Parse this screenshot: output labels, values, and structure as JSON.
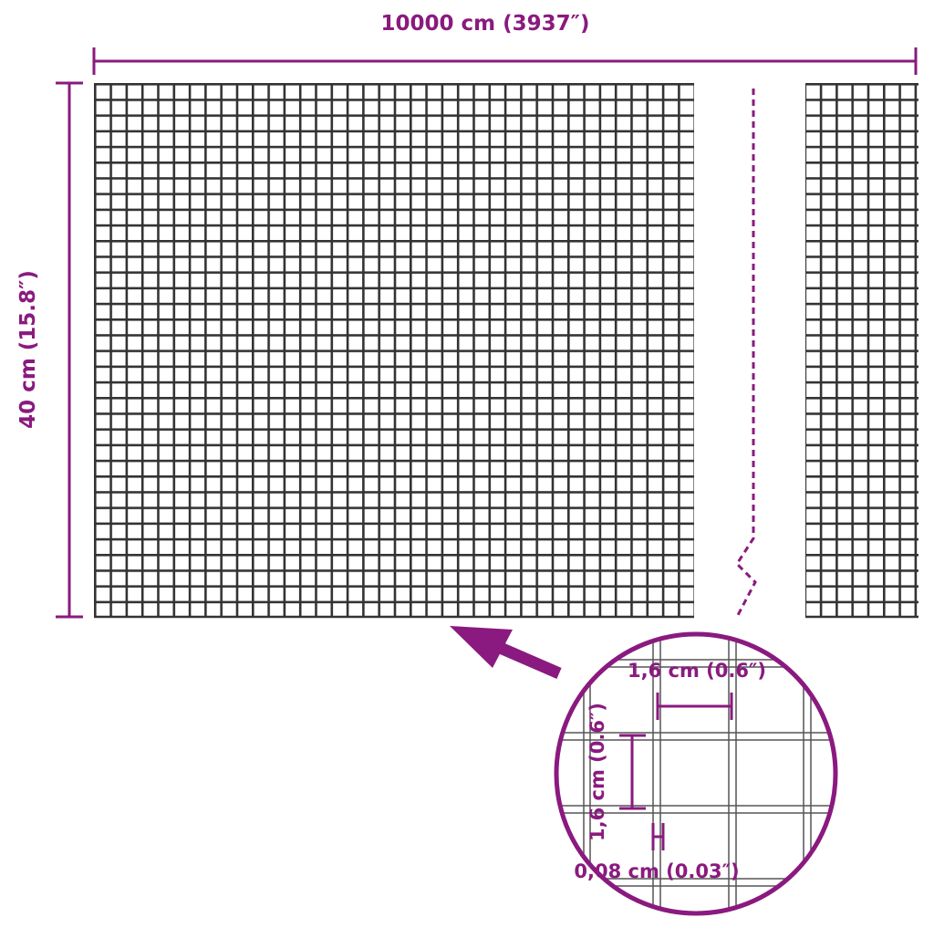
{
  "colors": {
    "accent": "#8a1a7f",
    "mesh": "#333333"
  },
  "dimensions": {
    "width_label": "10000 cm (3937″)",
    "height_label": "40 cm (15.8″)"
  },
  "detail": {
    "mesh_width_label": "1,6 cm (0.6″)",
    "mesh_height_label": "1,6 cm (0.6″)",
    "wire_thickness_label": "0,08 cm (0.03″)"
  }
}
